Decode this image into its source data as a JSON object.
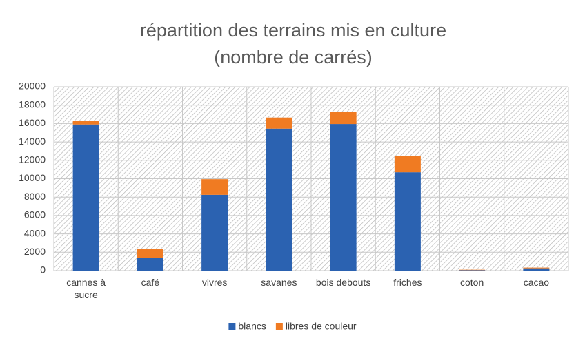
{
  "chart_data": {
    "type": "stacked_bar",
    "title": "répartition des terrains mis en culture",
    "subtitle": "(nombre de carrés)",
    "categories": [
      "cannes à sucre",
      "café",
      "vivres",
      "savanes",
      "bois debouts",
      "friches",
      "coton",
      "cacao"
    ],
    "series": [
      {
        "name": "blancs",
        "color": "#2b62b1",
        "values": [
          15900,
          1350,
          8250,
          15450,
          15950,
          10700,
          50,
          250
        ]
      },
      {
        "name": "libres de couleur",
        "color": "#f07b22",
        "values": [
          400,
          1000,
          1700,
          1200,
          1300,
          1750,
          50,
          80
        ]
      }
    ],
    "ylim": [
      0,
      20000
    ],
    "yticks": [
      0,
      2000,
      4000,
      6000,
      8000,
      10000,
      12000,
      14000,
      16000,
      18000,
      20000
    ],
    "grid": true,
    "legend": "bottom"
  }
}
